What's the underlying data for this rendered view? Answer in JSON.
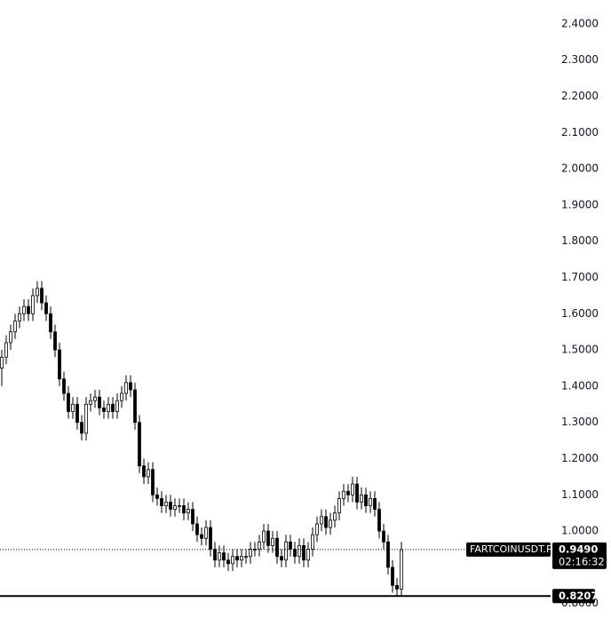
{
  "chart_data": {
    "type": "candlestick",
    "symbol": "FARTCOINUSDT.P",
    "ylim": [
      0.738,
      2.466
    ],
    "yticks": [
      {
        "value": 2.4,
        "label": "2.4000"
      },
      {
        "value": 2.3,
        "label": "2.3000"
      },
      {
        "value": 2.2,
        "label": "2.2000"
      },
      {
        "value": 2.1,
        "label": "2.1000"
      },
      {
        "value": 2.0,
        "label": "2.0000"
      },
      {
        "value": 1.9,
        "label": "1.9000"
      },
      {
        "value": 1.8,
        "label": "1.8000"
      },
      {
        "value": 1.7,
        "label": "1.7000"
      },
      {
        "value": 1.6,
        "label": "1.6000"
      },
      {
        "value": 1.5,
        "label": "1.5000"
      },
      {
        "value": 1.4,
        "label": "1.4000"
      },
      {
        "value": 1.3,
        "label": "1.3000"
      },
      {
        "value": 1.2,
        "label": "1.2000"
      },
      {
        "value": 1.1,
        "label": "1.1000"
      },
      {
        "value": 1.0,
        "label": "1.0000"
      },
      {
        "value": 0.8,
        "label": "0.8000"
      }
    ],
    "up_color": "#ffffff",
    "down_color": "#000000",
    "edge_color": "#000000",
    "last_price": {
      "value": 0.949,
      "label": "0.9490"
    },
    "countdown": "02:16:32",
    "level": {
      "value": 0.8207,
      "label": "0.8207"
    },
    "open": [
      1.45,
      1.48,
      1.52,
      1.55,
      1.58,
      1.6,
      1.62,
      1.6,
      1.65,
      1.67,
      1.63,
      1.6,
      1.55,
      1.5,
      1.42,
      1.38,
      1.33,
      1.35,
      1.3,
      1.27,
      1.35,
      1.36,
      1.37,
      1.34,
      1.33,
      1.35,
      1.33,
      1.36,
      1.38,
      1.41,
      1.39,
      1.3,
      1.18,
      1.15,
      1.17,
      1.1,
      1.09,
      1.07,
      1.08,
      1.06,
      1.07,
      1.07,
      1.05,
      1.06,
      1.02,
      0.99,
      0.98,
      1.01,
      0.95,
      0.92,
      0.94,
      0.92,
      0.91,
      0.93,
      0.92,
      0.93,
      0.93,
      0.95,
      0.95,
      0.97,
      1.0,
      0.96,
      0.98,
      0.93,
      0.92,
      0.97,
      0.95,
      0.93,
      0.96,
      0.92,
      0.95,
      0.99,
      1.02,
      1.04,
      1.01,
      1.03,
      1.05,
      1.09,
      1.11,
      1.1,
      1.13,
      1.08,
      1.1,
      1.07,
      1.09,
      1.06,
      1.0,
      0.97,
      0.9,
      0.85,
      0.84
    ],
    "high": [
      1.5,
      1.54,
      1.57,
      1.6,
      1.62,
      1.64,
      1.64,
      1.67,
      1.69,
      1.69,
      1.65,
      1.62,
      1.57,
      1.52,
      1.44,
      1.4,
      1.37,
      1.37,
      1.32,
      1.37,
      1.38,
      1.39,
      1.39,
      1.36,
      1.37,
      1.37,
      1.38,
      1.4,
      1.43,
      1.43,
      1.41,
      1.32,
      1.2,
      1.19,
      1.19,
      1.12,
      1.11,
      1.1,
      1.1,
      1.09,
      1.09,
      1.09,
      1.08,
      1.08,
      1.04,
      1.01,
      1.03,
      1.03,
      0.97,
      0.96,
      0.96,
      0.94,
      0.95,
      0.95,
      0.95,
      0.95,
      0.97,
      0.97,
      0.99,
      1.02,
      1.02,
      1.0,
      1.0,
      0.95,
      0.99,
      0.99,
      0.97,
      0.98,
      0.98,
      0.97,
      1.01,
      1.04,
      1.06,
      1.06,
      1.05,
      1.07,
      1.11,
      1.13,
      1.13,
      1.15,
      1.15,
      1.12,
      1.12,
      1.11,
      1.11,
      1.08,
      1.02,
      0.99,
      0.92,
      0.87,
      0.97
    ],
    "low": [
      1.4,
      1.46,
      1.5,
      1.53,
      1.56,
      1.58,
      1.58,
      1.58,
      1.63,
      1.61,
      1.58,
      1.53,
      1.48,
      1.4,
      1.36,
      1.31,
      1.31,
      1.28,
      1.25,
      1.25,
      1.33,
      1.34,
      1.32,
      1.31,
      1.31,
      1.31,
      1.31,
      1.34,
      1.36,
      1.37,
      1.28,
      1.16,
      1.13,
      1.13,
      1.08,
      1.07,
      1.05,
      1.05,
      1.04,
      1.04,
      1.05,
      1.03,
      1.03,
      1.0,
      0.97,
      0.96,
      0.96,
      0.93,
      0.9,
      0.9,
      0.9,
      0.89,
      0.89,
      0.9,
      0.9,
      0.91,
      0.91,
      0.93,
      0.93,
      0.95,
      0.94,
      0.94,
      0.91,
      0.9,
      0.9,
      0.93,
      0.91,
      0.91,
      0.9,
      0.9,
      0.93,
      0.97,
      1.0,
      0.99,
      0.99,
      1.01,
      1.03,
      1.07,
      1.08,
      1.08,
      1.06,
      1.06,
      1.05,
      1.05,
      1.04,
      0.98,
      0.95,
      0.88,
      0.83,
      0.82,
      0.82
    ],
    "close": [
      1.48,
      1.52,
      1.55,
      1.58,
      1.6,
      1.62,
      1.6,
      1.65,
      1.67,
      1.63,
      1.6,
      1.55,
      1.5,
      1.42,
      1.38,
      1.33,
      1.35,
      1.3,
      1.27,
      1.35,
      1.36,
      1.37,
      1.34,
      1.33,
      1.35,
      1.33,
      1.36,
      1.38,
      1.41,
      1.39,
      1.3,
      1.18,
      1.15,
      1.17,
      1.1,
      1.09,
      1.07,
      1.08,
      1.06,
      1.07,
      1.07,
      1.05,
      1.06,
      1.02,
      0.99,
      0.98,
      1.01,
      0.95,
      0.92,
      0.94,
      0.92,
      0.91,
      0.93,
      0.92,
      0.93,
      0.93,
      0.95,
      0.95,
      0.97,
      1.0,
      0.96,
      0.98,
      0.93,
      0.92,
      0.97,
      0.95,
      0.93,
      0.96,
      0.92,
      0.95,
      0.99,
      1.02,
      1.04,
      1.01,
      1.03,
      1.05,
      1.09,
      1.11,
      1.1,
      1.13,
      1.08,
      1.1,
      1.07,
      1.09,
      1.06,
      1.0,
      0.97,
      0.9,
      0.85,
      0.84,
      0.949
    ]
  }
}
